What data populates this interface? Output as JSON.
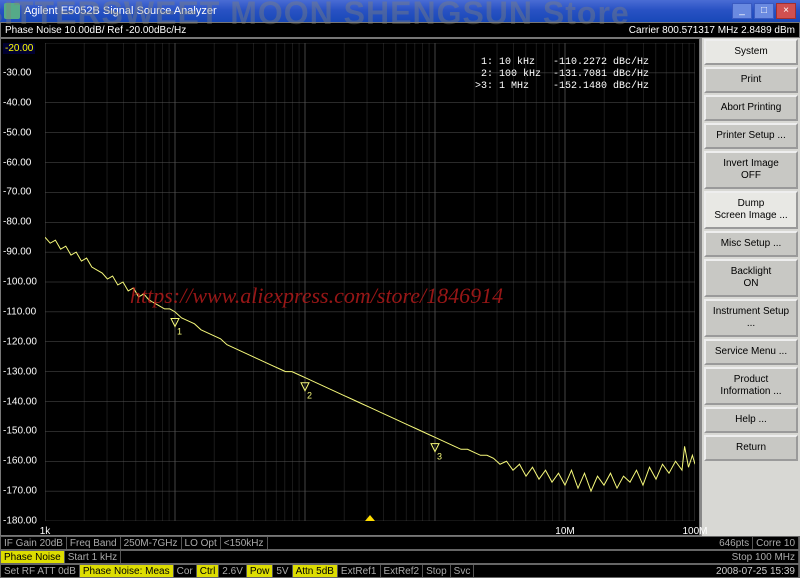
{
  "watermarks": {
    "top": "BITTERSWEET MOON SHENGSUN Store",
    "mid": "https://www.aliexpress.com/store/1846914"
  },
  "window": {
    "title": "Agilent E5052B Signal Source Analyzer"
  },
  "header": {
    "left": "Phase Noise 10.00dB/ Ref -20.00dBc/Hz",
    "right": "Carrier 800.571317 MHz    2.8489 dBm"
  },
  "markers": {
    "rows": [
      " 1: 10 kHz   -110.2272 dBc/Hz",
      " 2: 100 kHz  -131.7081 dBc/Hz",
      ">3: 1 MHz    -152.1480 dBc/Hz"
    ]
  },
  "chart": {
    "y_min": -180,
    "y_max": -20,
    "y_step": 10,
    "x_decades": [
      3,
      4,
      5,
      6,
      7,
      8
    ],
    "x_labels": {
      "3": "1k",
      "4": "",
      "5": "",
      "6": "",
      "7": "10M",
      "8": "100M"
    },
    "trace_color": "#f5f87a",
    "grid_color": "#555555",
    "bg": "#000000",
    "marker_points": [
      {
        "id": "1",
        "log_x": 4.0,
        "y": -110.2
      },
      {
        "id": "2",
        "log_x": 5.0,
        "y": -131.7
      },
      {
        "id": "3",
        "log_x": 6.0,
        "y": -152.1
      }
    ],
    "trace": [
      [
        3.0,
        -85
      ],
      [
        3.04,
        -87
      ],
      [
        3.08,
        -86
      ],
      [
        3.12,
        -89
      ],
      [
        3.16,
        -88
      ],
      [
        3.2,
        -91
      ],
      [
        3.24,
        -90
      ],
      [
        3.28,
        -93
      ],
      [
        3.32,
        -92
      ],
      [
        3.36,
        -95
      ],
      [
        3.4,
        -96
      ],
      [
        3.44,
        -97
      ],
      [
        3.48,
        -99
      ],
      [
        3.52,
        -98
      ],
      [
        3.56,
        -101
      ],
      [
        3.6,
        -100
      ],
      [
        3.64,
        -103
      ],
      [
        3.68,
        -102
      ],
      [
        3.72,
        -105
      ],
      [
        3.76,
        -104
      ],
      [
        3.8,
        -106
      ],
      [
        3.84,
        -107
      ],
      [
        3.88,
        -108
      ],
      [
        3.92,
        -109
      ],
      [
        3.96,
        -109
      ],
      [
        4.0,
        -110
      ],
      [
        4.05,
        -112
      ],
      [
        4.1,
        -113
      ],
      [
        4.15,
        -114
      ],
      [
        4.2,
        -116
      ],
      [
        4.25,
        -117
      ],
      [
        4.3,
        -118
      ],
      [
        4.35,
        -119
      ],
      [
        4.4,
        -121
      ],
      [
        4.45,
        -122
      ],
      [
        4.5,
        -123
      ],
      [
        4.55,
        -124
      ],
      [
        4.6,
        -125
      ],
      [
        4.65,
        -126
      ],
      [
        4.7,
        -127
      ],
      [
        4.75,
        -128
      ],
      [
        4.8,
        -129
      ],
      [
        4.85,
        -130
      ],
      [
        4.9,
        -130
      ],
      [
        4.95,
        -131
      ],
      [
        5.0,
        -132
      ],
      [
        5.05,
        -133
      ],
      [
        5.1,
        -134
      ],
      [
        5.15,
        -135
      ],
      [
        5.2,
        -136
      ],
      [
        5.25,
        -137
      ],
      [
        5.3,
        -138
      ],
      [
        5.35,
        -139
      ],
      [
        5.4,
        -140
      ],
      [
        5.45,
        -141
      ],
      [
        5.5,
        -142
      ],
      [
        5.55,
        -143
      ],
      [
        5.6,
        -144
      ],
      [
        5.65,
        -145
      ],
      [
        5.7,
        -146
      ],
      [
        5.75,
        -147
      ],
      [
        5.8,
        -148
      ],
      [
        5.85,
        -149
      ],
      [
        5.9,
        -150
      ],
      [
        5.95,
        -151
      ],
      [
        6.0,
        -152
      ],
      [
        6.05,
        -153
      ],
      [
        6.1,
        -154
      ],
      [
        6.15,
        -155
      ],
      [
        6.2,
        -156
      ],
      [
        6.25,
        -156
      ],
      [
        6.3,
        -157
      ],
      [
        6.35,
        -158
      ],
      [
        6.4,
        -158
      ],
      [
        6.45,
        -159
      ],
      [
        6.5,
        -161
      ],
      [
        6.55,
        -160
      ],
      [
        6.6,
        -163
      ],
      [
        6.65,
        -161
      ],
      [
        6.7,
        -165
      ],
      [
        6.75,
        -162
      ],
      [
        6.8,
        -166
      ],
      [
        6.85,
        -163
      ],
      [
        6.9,
        -167
      ],
      [
        6.95,
        -164
      ],
      [
        7.0,
        -168
      ],
      [
        7.05,
        -163
      ],
      [
        7.1,
        -169
      ],
      [
        7.15,
        -164
      ],
      [
        7.2,
        -170
      ],
      [
        7.25,
        -165
      ],
      [
        7.3,
        -168
      ],
      [
        7.35,
        -164
      ],
      [
        7.4,
        -169
      ],
      [
        7.45,
        -165
      ],
      [
        7.5,
        -167
      ],
      [
        7.55,
        -163
      ],
      [
        7.6,
        -168
      ],
      [
        7.65,
        -162
      ],
      [
        7.7,
        -166
      ],
      [
        7.75,
        -161
      ],
      [
        7.8,
        -164
      ],
      [
        7.85,
        -160
      ],
      [
        7.9,
        -163
      ],
      [
        7.92,
        -155
      ],
      [
        7.95,
        -162
      ],
      [
        7.98,
        -158
      ],
      [
        8.0,
        -161
      ]
    ]
  },
  "sidebar": {
    "items": [
      {
        "label": "System",
        "hl": true
      },
      {
        "label": "Print"
      },
      {
        "label": "Abort Printing"
      },
      {
        "label": "Printer Setup ..."
      },
      {
        "label": "Invert Image\nOFF"
      },
      {
        "label": "Dump\nScreen Image ...",
        "hl": true
      },
      {
        "label": "Misc Setup ..."
      },
      {
        "label": "Backlight\nON"
      },
      {
        "label": "Instrument Setup ..."
      },
      {
        "label": "Service Menu ..."
      },
      {
        "label": "Product\nInformation ..."
      },
      {
        "label": "Help ..."
      },
      {
        "label": "Return"
      }
    ]
  },
  "row1": {
    "c1": "IF Gain 20dB",
    "c2": "Freq Band",
    "c3": "250M-7GHz",
    "c4": "LO Opt",
    "c5": "<150kHz",
    "c6": "646pts",
    "c7": "Corre 10"
  },
  "row2": {
    "c1": "Phase Noise",
    "c2": "Start 1 kHz",
    "c3": "Stop 100 MHz"
  },
  "row3": {
    "c1": "Set RF ATT 0dB",
    "c2": "Phase Noise: Meas",
    "c3": "Cor",
    "c4": "Ctrl",
    "c5": "2.6V",
    "c6": "Pow",
    "c7": "5V",
    "c8": "Attn 5dB",
    "c9": "ExtRef1",
    "c10": "ExtRef2",
    "c11": "Stop",
    "c12": "Svc",
    "clock": "2008-07-25 15:39"
  }
}
